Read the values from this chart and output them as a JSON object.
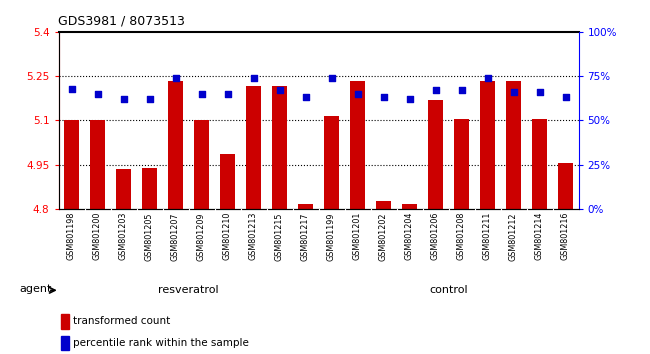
{
  "title": "GDS3981 / 8073513",
  "samples": [
    "GSM801198",
    "GSM801200",
    "GSM801203",
    "GSM801205",
    "GSM801207",
    "GSM801209",
    "GSM801210",
    "GSM801213",
    "GSM801215",
    "GSM801217",
    "GSM801199",
    "GSM801201",
    "GSM801202",
    "GSM801204",
    "GSM801206",
    "GSM801208",
    "GSM801211",
    "GSM801212",
    "GSM801214",
    "GSM801216"
  ],
  "bar_values": [
    5.1,
    5.1,
    4.935,
    4.94,
    5.235,
    5.1,
    4.985,
    5.215,
    5.215,
    4.815,
    5.115,
    5.235,
    4.825,
    4.815,
    5.17,
    5.105,
    5.235,
    5.235,
    5.105,
    4.955
  ],
  "blue_values": [
    68,
    65,
    62,
    62,
    74,
    65,
    65,
    74,
    67,
    63,
    74,
    65,
    63,
    62,
    67,
    67,
    74,
    66,
    66,
    63
  ],
  "bar_color": "#cc0000",
  "blue_color": "#0000cc",
  "ylim_left": [
    4.8,
    5.4
  ],
  "ylim_right": [
    0,
    100
  ],
  "yticks_left": [
    4.8,
    4.95,
    5.1,
    5.25,
    5.4
  ],
  "yticks_right": [
    0,
    25,
    50,
    75,
    100
  ],
  "ytick_labels_right": [
    "0%",
    "25%",
    "50%",
    "75%",
    "100%"
  ],
  "gridlines": [
    4.95,
    5.1,
    5.25
  ],
  "resveratrol_count": 10,
  "control_count": 10,
  "agent_label": "agent",
  "resveratrol_label": "resveratrol",
  "control_label": "control",
  "legend_bar_label": "transformed count",
  "legend_blue_label": "percentile rank within the sample",
  "bar_width": 0.55,
  "light_green": "#99EE99",
  "dark_green": "#55DD55",
  "grey_cell": "#cccccc"
}
